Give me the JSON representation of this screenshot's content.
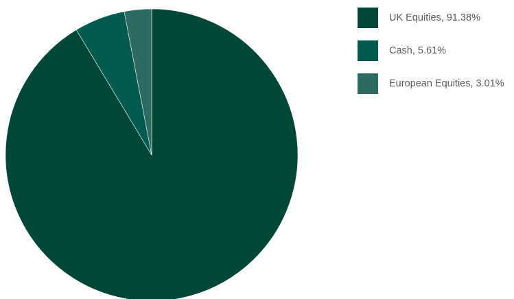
{
  "chart_data": {
    "type": "pie",
    "title": "",
    "categories": [
      "UK Equities",
      "Cash",
      "European Equities"
    ],
    "values": [
      91.38,
      5.61,
      3.01
    ],
    "unit": "%",
    "colors": [
      "#00473a",
      "#005a4e",
      "#2d6b62"
    ],
    "legend": {
      "placement": "right",
      "entries": [
        "UK Equities, 91.38%",
        "Cash, 5.61%",
        "European Equities, 3.01%"
      ]
    },
    "start_angle": "12 o'clock",
    "direction": "clockwise"
  }
}
